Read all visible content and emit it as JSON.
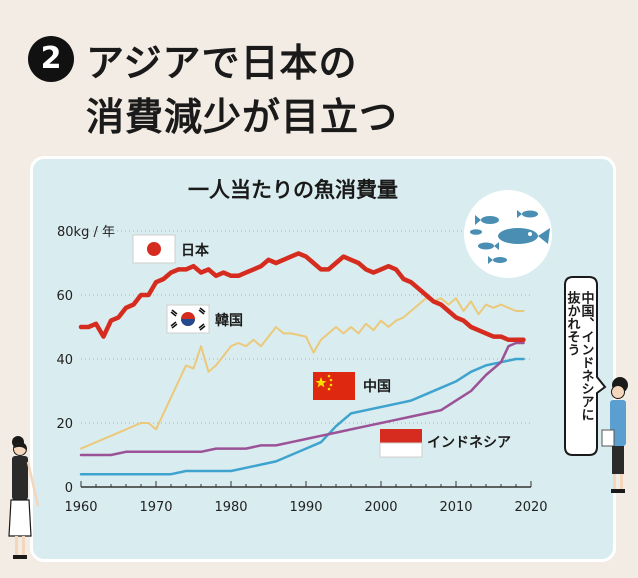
{
  "header": {
    "number": "2",
    "line1": "アジアで日本の",
    "line2": "消費減少が目立つ"
  },
  "callout": {
    "lines": [
      "中国、インドネシアに",
      "抜かれそう"
    ]
  },
  "colors": {
    "japan": "#d62c1f",
    "korea": "#ecc97a",
    "china": "#3fa3cf",
    "indonesia": "#9b5296",
    "panel": "#d9ecef",
    "background": "#f3ece4"
  },
  "chart_data": {
    "type": "line",
    "title": "一人当たりの魚消費量",
    "ylabel": "80kg / 年",
    "xlim": [
      1960,
      2020
    ],
    "ylim": [
      0,
      80
    ],
    "xticks": [
      "1960",
      "1970",
      "1980",
      "1990",
      "2000",
      "2010",
      "2020"
    ],
    "yticks": [
      "0",
      "20",
      "40",
      "60"
    ],
    "series": [
      {
        "name": "日本",
        "key": "japan",
        "x": [
          1960,
          1961,
          1962,
          1963,
          1964,
          1965,
          1966,
          1967,
          1968,
          1969,
          1970,
          1971,
          1972,
          1973,
          1974,
          1975,
          1976,
          1977,
          1978,
          1979,
          1980,
          1981,
          1982,
          1983,
          1984,
          1985,
          1986,
          1987,
          1988,
          1989,
          1990,
          1991,
          1992,
          1993,
          1994,
          1995,
          1996,
          1997,
          1998,
          1999,
          2000,
          2001,
          2002,
          2003,
          2004,
          2005,
          2006,
          2007,
          2008,
          2009,
          2010,
          2011,
          2012,
          2013,
          2014,
          2015,
          2016,
          2017,
          2018,
          2019
        ],
        "values": [
          50,
          50,
          51,
          47,
          52,
          53,
          56,
          57,
          60,
          60,
          64,
          65,
          67,
          68,
          68,
          69,
          67,
          68,
          66,
          67,
          66,
          66,
          67,
          68,
          69,
          71,
          70,
          71,
          72,
          73,
          72,
          70,
          68,
          68,
          70,
          72,
          71,
          70,
          68,
          67,
          68,
          69,
          68,
          65,
          64,
          62,
          60,
          58,
          57,
          55,
          53,
          52,
          50,
          49,
          48,
          47,
          47,
          46,
          46,
          46
        ]
      },
      {
        "name": "韓国",
        "key": "korea",
        "x": [
          1960,
          1962,
          1964,
          1966,
          1968,
          1969,
          1970,
          1972,
          1973,
          1974,
          1975,
          1976,
          1977,
          1978,
          1980,
          1981,
          1982,
          1983,
          1984,
          1986,
          1987,
          1988,
          1990,
          1991,
          1992,
          1993,
          1994,
          1995,
          1996,
          1997,
          1998,
          1999,
          2000,
          2001,
          2002,
          2003,
          2004,
          2005,
          2006,
          2007,
          2008,
          2009,
          2010,
          2011,
          2012,
          2013,
          2014,
          2015,
          2016,
          2017,
          2018,
          2019
        ],
        "values": [
          12,
          14,
          16,
          18,
          20,
          20,
          18,
          28,
          33,
          38,
          37,
          44,
          36,
          38,
          44,
          45,
          44,
          46,
          44,
          50,
          48,
          48,
          47,
          42,
          46,
          48,
          50,
          48,
          50,
          48,
          51,
          49,
          52,
          50,
          52,
          53,
          55,
          57,
          59,
          58,
          59,
          57,
          59,
          55,
          58,
          54,
          57,
          56,
          57,
          56,
          55,
          55
        ]
      },
      {
        "name": "中国",
        "key": "china",
        "x": [
          1960,
          1962,
          1964,
          1966,
          1968,
          1970,
          1972,
          1974,
          1976,
          1978,
          1980,
          1982,
          1984,
          1986,
          1988,
          1990,
          1992,
          1994,
          1996,
          1998,
          2000,
          2002,
          2004,
          2006,
          2008,
          2010,
          2012,
          2014,
          2016,
          2018,
          2019
        ],
        "values": [
          4,
          4,
          4,
          4,
          4,
          4,
          4,
          5,
          5,
          5,
          5,
          6,
          7,
          8,
          10,
          12,
          14,
          19,
          23,
          24,
          25,
          26,
          27,
          29,
          31,
          33,
          36,
          38,
          39,
          40,
          40
        ]
      },
      {
        "name": "インドネシア",
        "key": "indonesia",
        "x": [
          1960,
          1962,
          1964,
          1966,
          1968,
          1970,
          1972,
          1974,
          1976,
          1978,
          1980,
          1982,
          1984,
          1986,
          1988,
          1990,
          1992,
          1994,
          1996,
          1998,
          2000,
          2002,
          2004,
          2006,
          2008,
          2010,
          2012,
          2014,
          2016,
          2017,
          2018,
          2019
        ],
        "values": [
          10,
          10,
          10,
          11,
          11,
          11,
          11,
          11,
          11,
          12,
          12,
          12,
          13,
          13,
          14,
          15,
          16,
          17,
          18,
          19,
          20,
          21,
          22,
          23,
          24,
          27,
          30,
          35,
          39,
          44,
          45,
          45
        ]
      }
    ]
  }
}
